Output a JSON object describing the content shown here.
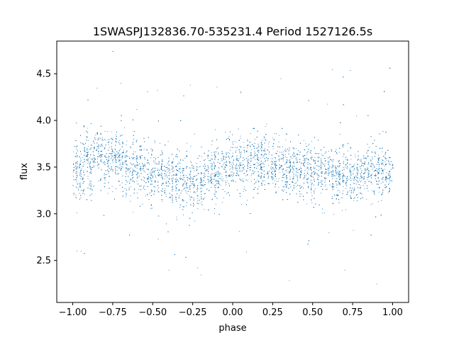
{
  "chart_data": {
    "type": "scatter",
    "title": "1SWASPJ132836.70-535231.4 Period 1527126.5s",
    "xlabel": "phase",
    "ylabel": "flux",
    "xlim": [
      -1.1,
      1.1
    ],
    "ylim": [
      2.05,
      4.85
    ],
    "x_ticks": [
      -1.0,
      -0.75,
      -0.5,
      -0.25,
      0.0,
      0.25,
      0.5,
      0.75,
      1.0
    ],
    "x_tick_labels": [
      "−1.00",
      "−0.75",
      "−0.50",
      "−0.25",
      "0.00",
      "0.25",
      "0.50",
      "0.75",
      "1.00"
    ],
    "y_ticks": [
      2.5,
      3.0,
      3.5,
      4.0,
      4.5
    ],
    "y_tick_labels": [
      "2.5",
      "3.0",
      "3.5",
      "4.0",
      "4.5"
    ],
    "series": [
      {
        "color": "#1f77b4",
        "marker": "point",
        "x_range": [
          -1.0,
          1.0
        ],
        "approx_points": 30000,
        "points": [
          [
            -0.98,
            3.55
          ],
          [
            -0.95,
            3.4
          ],
          [
            -0.92,
            3.62
          ],
          [
            -0.88,
            3.5
          ],
          [
            -0.85,
            3.7
          ],
          [
            -0.8,
            3.55
          ],
          [
            -0.75,
            3.6
          ],
          [
            -0.7,
            3.58
          ],
          [
            -0.65,
            3.48
          ],
          [
            -0.6,
            3.52
          ],
          [
            -0.55,
            3.45
          ],
          [
            -0.5,
            3.4
          ],
          [
            -0.45,
            3.42
          ],
          [
            -0.4,
            3.38
          ],
          [
            -0.35,
            3.36
          ],
          [
            -0.3,
            3.35
          ],
          [
            -0.25,
            3.33
          ],
          [
            -0.2,
            3.38
          ],
          [
            -0.15,
            3.4
          ],
          [
            -0.1,
            3.45
          ],
          [
            -0.05,
            3.48
          ],
          [
            0.0,
            3.5
          ],
          [
            0.05,
            3.55
          ],
          [
            0.1,
            3.58
          ],
          [
            0.15,
            3.55
          ],
          [
            0.2,
            3.56
          ],
          [
            0.25,
            3.55
          ],
          [
            0.3,
            3.52
          ],
          [
            0.35,
            3.5
          ],
          [
            0.4,
            3.48
          ],
          [
            0.45,
            3.47
          ],
          [
            0.5,
            3.45
          ],
          [
            0.55,
            3.44
          ],
          [
            0.6,
            3.43
          ],
          [
            0.65,
            3.42
          ],
          [
            0.7,
            3.4
          ],
          [
            0.75,
            3.38
          ],
          [
            0.8,
            3.42
          ],
          [
            0.85,
            3.44
          ],
          [
            0.9,
            3.46
          ],
          [
            0.95,
            3.48
          ],
          [
            1.0,
            3.5
          ],
          [
            -0.85,
            4.35
          ],
          [
            -0.7,
            4.4
          ],
          [
            0.3,
            4.45
          ],
          [
            0.05,
            4.3
          ],
          [
            -0.4,
            2.4
          ],
          [
            -0.2,
            2.35
          ],
          [
            0.7,
            2.4
          ],
          [
            0.9,
            2.25
          ],
          [
            -0.95,
            2.6
          ],
          [
            0.6,
            2.8
          ]
        ]
      }
    ],
    "grid": false
  }
}
